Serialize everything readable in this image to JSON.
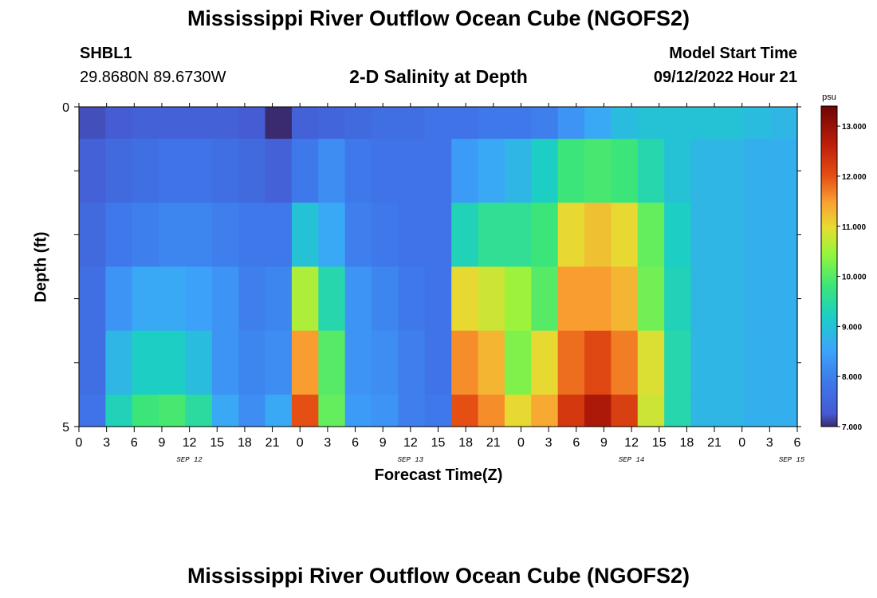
{
  "header": {
    "title": "Mississippi River Outflow Ocean Cube (NGOFS2)",
    "station": "SHBL1",
    "coordinates": "29.8680N  89.6730W",
    "subtitle": "2-D Salinity at Depth",
    "model_start_label": "Model Start Time",
    "model_start_value": "09/12/2022 Hour 21"
  },
  "footer": {
    "title_repeat": "Mississippi River Outflow Ocean Cube (NGOFS2)"
  },
  "chart_data": {
    "type": "heatmap",
    "title": "2-D Salinity at Depth",
    "xlabel": "Forecast Time(Z)",
    "ylabel": "Depth (ft)",
    "x_tick_labels": [
      "0",
      "3",
      "6",
      "9",
      "12",
      "15",
      "18",
      "21",
      "0",
      "3",
      "6",
      "9",
      "12",
      "15",
      "18",
      "21",
      "0",
      "3",
      "6",
      "9",
      "12",
      "15",
      "18",
      "21",
      "0",
      "3",
      "6"
    ],
    "date_labels": [
      "SEP 12",
      "SEP 13",
      "SEP 14",
      "SEP 15"
    ],
    "y_tick_labels": [
      "0",
      "5"
    ],
    "ylim": [
      0,
      5
    ],
    "colorbar": {
      "unit": "psu",
      "range": [
        7.0,
        13.4
      ],
      "tick_labels": [
        "7.000",
        "8.000",
        "9.000",
        "10.000",
        "11.000",
        "12.000",
        "13.000"
      ],
      "tick_values": [
        7,
        8,
        9,
        10,
        11,
        12,
        13
      ]
    },
    "time_columns": 27,
    "depth_layers": [
      "0-0.5 ft",
      "0.5-1.5 ft",
      "1.5-2.5 ft",
      "2.5-3.5 ft",
      "3.5-4.5 ft",
      "4.5-5 ft"
    ],
    "values": [
      [
        7.2,
        7.3,
        7.4,
        7.4,
        7.4,
        7.4,
        7.3,
        6.9,
        7.4,
        7.5,
        7.6,
        7.7,
        7.7,
        7.8,
        7.8,
        7.9,
        7.9,
        8.0,
        8.3,
        8.6,
        8.9,
        9.0,
        9.0,
        9.0,
        9.0,
        8.9,
        8.8
      ],
      [
        7.4,
        7.6,
        7.7,
        7.8,
        7.8,
        7.7,
        7.6,
        7.4,
        7.9,
        8.2,
        7.9,
        7.8,
        7.8,
        7.8,
        8.4,
        8.6,
        8.8,
        9.2,
        9.8,
        9.9,
        9.8,
        9.4,
        9.0,
        8.8,
        8.8,
        8.7,
        8.7
      ],
      [
        7.6,
        7.9,
        8.0,
        8.1,
        8.1,
        8.0,
        7.9,
        7.9,
        9.0,
        8.6,
        8.0,
        7.9,
        7.8,
        7.8,
        9.3,
        9.6,
        9.6,
        9.8,
        11.0,
        11.2,
        11.0,
        10.1,
        9.2,
        8.8,
        8.8,
        8.7,
        8.7
      ],
      [
        7.7,
        8.3,
        8.6,
        8.6,
        8.5,
        8.3,
        8.0,
        8.1,
        10.6,
        9.4,
        8.3,
        8.1,
        7.9,
        7.8,
        11.0,
        10.8,
        10.5,
        10.0,
        11.5,
        11.5,
        11.3,
        10.2,
        9.3,
        8.8,
        8.8,
        8.7,
        8.7
      ],
      [
        7.7,
        8.8,
        9.2,
        9.2,
        8.9,
        8.3,
        8.1,
        8.2,
        11.5,
        10.0,
        8.3,
        8.2,
        8.0,
        7.8,
        11.6,
        11.3,
        10.3,
        11.0,
        11.8,
        12.1,
        11.7,
        10.9,
        9.4,
        8.8,
        8.8,
        8.7,
        8.7
      ],
      [
        7.8,
        9.3,
        9.8,
        9.9,
        9.5,
        8.6,
        8.2,
        8.6,
        12.0,
        10.1,
        8.4,
        8.3,
        8.0,
        7.9,
        12.0,
        11.6,
        11.0,
        11.4,
        12.3,
        12.8,
        12.2,
        10.8,
        9.4,
        8.8,
        8.8,
        8.7,
        8.7
      ]
    ]
  }
}
